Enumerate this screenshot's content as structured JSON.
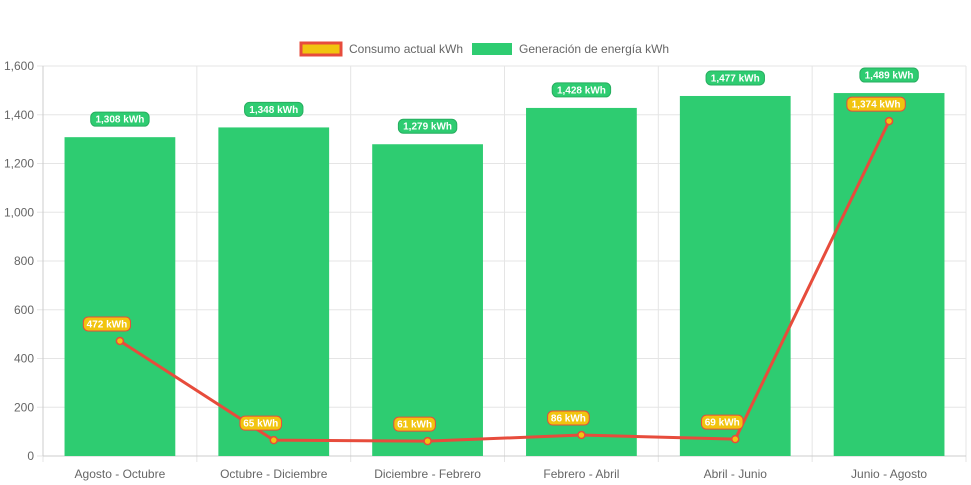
{
  "chart_data": {
    "type": "bar",
    "categories": [
      "Agosto - Octubre",
      "Octubre - Diciembre",
      "Diciembre - Febrero",
      "Febrero - Abril",
      "Abril - Junio",
      "Junio - Agosto"
    ],
    "series": [
      {
        "name": "Consumo actual kWh",
        "type": "line",
        "values": [
          472,
          65,
          61,
          86,
          69,
          1374
        ],
        "labels": [
          "472 kWh",
          "65 kWh",
          "61 kWh",
          "86 kWh",
          "69 kWh",
          "1,374 kWh"
        ],
        "color": "#e74c3c",
        "fill_color": "#f1c40f"
      },
      {
        "name": "Generación de energía kWh",
        "type": "bar",
        "values": [
          1308,
          1348,
          1279,
          1428,
          1477,
          1489
        ],
        "labels": [
          "1,308 kWh",
          "1,348 kWh",
          "1,279 kWh",
          "1,428 kWh",
          "1,477 kWh",
          "1,489 kWh"
        ],
        "color": "#2ecc71"
      }
    ],
    "y_ticks": [
      "0",
      "200",
      "400",
      "600",
      "800",
      "1,000",
      "1,200",
      "1,400",
      "1,600"
    ],
    "ylim": [
      0,
      1600
    ],
    "grid": true,
    "legend_position": "top-center",
    "title": "",
    "xlabel": "",
    "ylabel": ""
  },
  "colors": {
    "grid": "#e5e5e5",
    "axis_text": "#666666",
    "line": "#e74c3c",
    "line_label_bg": "#f1c40f",
    "bar": "#2ecc71",
    "bar_label_border": "#27ae60"
  }
}
